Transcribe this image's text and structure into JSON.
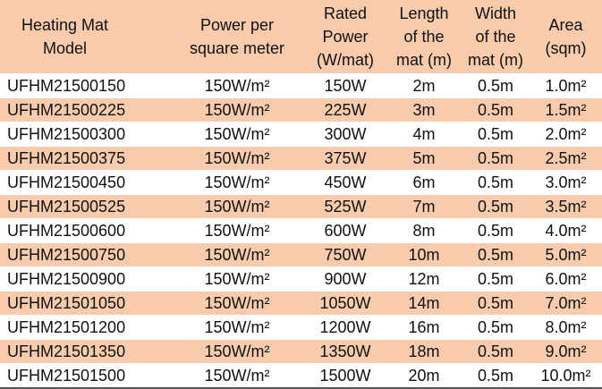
{
  "table": {
    "header": [
      "Heating Mat\nModel",
      "Power per\nsquare meter",
      "Rated\nPower\n(W/mat)",
      "Length\nof the\nmat (m)",
      "Width\nof the\nmat (m)",
      "Area\n(sqm)"
    ],
    "rows": [
      [
        "UFHM21500150",
        "150W/m²",
        "150W",
        "2m",
        "0.5m",
        "1.0m²"
      ],
      [
        "UFHM21500225",
        "150W/m²",
        "225W",
        "3m",
        "0.5m",
        "1.5m²"
      ],
      [
        "UFHM21500300",
        "150W/m²",
        "300W",
        "4m",
        "0.5m",
        "2.0m²"
      ],
      [
        "UFHM21500375",
        "150W/m²",
        "375W",
        "5m",
        "0.5m",
        "2.5m²"
      ],
      [
        "UFHM21500450",
        "150W/m²",
        "450W",
        "6m",
        "0.5m",
        "3.0m²"
      ],
      [
        "UFHM21500525",
        "150W/m²",
        "525W",
        "7m",
        "0.5m",
        "3.5m²"
      ],
      [
        "UFHM21500600",
        "150W/m²",
        "600W",
        "8m",
        "0.5m",
        "4.0m²"
      ],
      [
        "UFHM21500750",
        "150W/m²",
        "750W",
        "10m",
        "0.5m",
        "5.0m²"
      ],
      [
        "UFHM21500900",
        "150W/m²",
        "900W",
        "12m",
        "0.5m",
        "6.0m²"
      ],
      [
        "UFHM21501050",
        "150W/m²",
        "1050W",
        "14m",
        "0.5m",
        "7.0m²"
      ],
      [
        "UFHM21501200",
        "150W/m²",
        "1200W",
        "16m",
        "0.5m",
        "8.0m²"
      ],
      [
        "UFHM21501350",
        "150W/m²",
        "1350W",
        "18m",
        "0.5m",
        "9.0m²"
      ],
      [
        "UFHM21501500",
        "150W/m²",
        "1500W",
        "20m",
        "0.5m",
        "10.0m²"
      ]
    ]
  }
}
